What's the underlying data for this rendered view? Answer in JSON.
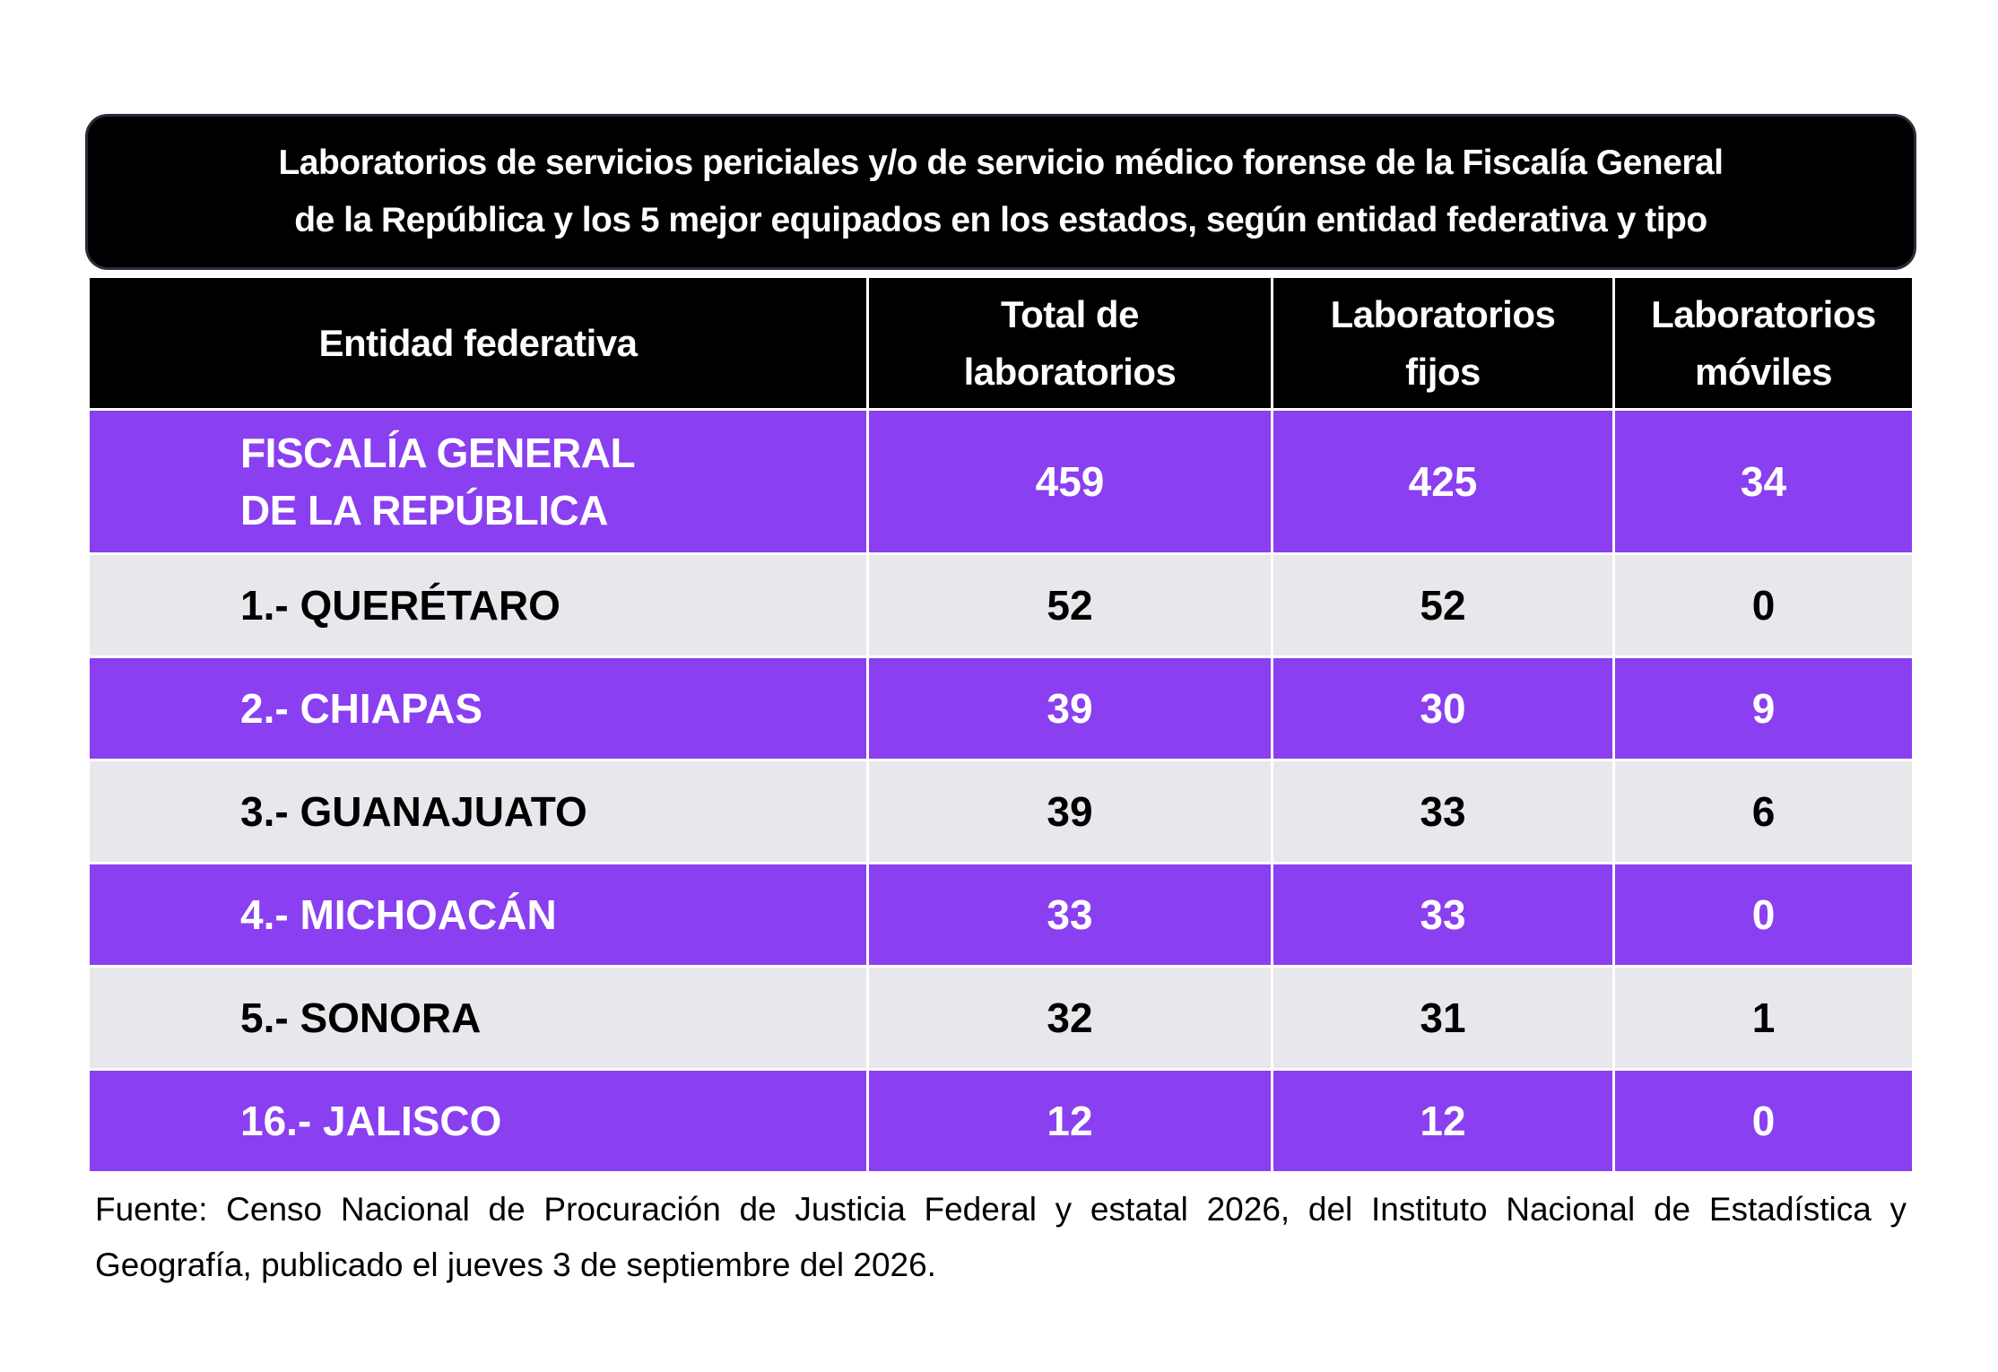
{
  "title": {
    "line1": "Laboratorios de servicios periciales y/o de servicio médico forense de la Fiscalía General",
    "line2": "de la República y los 5 mejor equipados en los estados, según entidad federativa y tipo"
  },
  "header": {
    "col0": "Entidad federativa",
    "col1": [
      "Total  de",
      "laboratorios"
    ],
    "col2": [
      "Laboratorios",
      "fijos"
    ],
    "col3": [
      "Laboratorios",
      "móviles"
    ]
  },
  "rows": [
    {
      "name": [
        "FISCALÍA GENERAL",
        "DE LA REPÚBLICA"
      ],
      "total": "459",
      "fijos": "425",
      "moviles": "34"
    },
    {
      "name": [
        "1.- QUERÉTARO"
      ],
      "total": "52",
      "fijos": "52",
      "moviles": "0"
    },
    {
      "name": [
        "2.- CHIAPAS"
      ],
      "total": "39",
      "fijos": "30",
      "moviles": "9"
    },
    {
      "name": [
        "3.- GUANAJUATO"
      ],
      "total": "39",
      "fijos": "33",
      "moviles": "6"
    },
    {
      "name": [
        "4.- MICHOACÁN"
      ],
      "total": "33",
      "fijos": "33",
      "moviles": "0"
    },
    {
      "name": [
        "5.- SONORA"
      ],
      "total": "32",
      "fijos": "31",
      "moviles": "1"
    },
    {
      "name": [
        "16.- JALISCO"
      ],
      "total": "12",
      "fijos": "12",
      "moviles": "0"
    }
  ],
  "footnote": "Fuente: Censo Nacional de Procuración de Justicia Federal y estatal 2026, del Instituto Nacional de Estadística y Geografía, publicado el jueves 3 de septiembre del 2026.",
  "colors": {
    "purple": "#8a3ff0",
    "grey": "#e8e8ec",
    "header": "#000000"
  },
  "chart_data": {
    "type": "table",
    "title": "Laboratorios de servicios periciales y/o de servicio médico forense de la Fiscalía General de la República y los 5 mejor equipados en los estados, según entidad federativa y tipo",
    "columns": [
      "Entidad federativa",
      "Total de laboratorios",
      "Laboratorios fijos",
      "Laboratorios móviles"
    ],
    "rows": [
      [
        "FISCALÍA GENERAL DE LA REPÚBLICA",
        459,
        425,
        34
      ],
      [
        "1.- QUERÉTARO",
        52,
        52,
        0
      ],
      [
        "2.- CHIAPAS",
        39,
        30,
        9
      ],
      [
        "3.- GUANAJUATO",
        39,
        33,
        6
      ],
      [
        "4.- MICHOACÁN",
        33,
        33,
        0
      ],
      [
        "5.- SONORA",
        32,
        31,
        1
      ],
      [
        "16.- JALISCO",
        12,
        12,
        0
      ]
    ]
  }
}
